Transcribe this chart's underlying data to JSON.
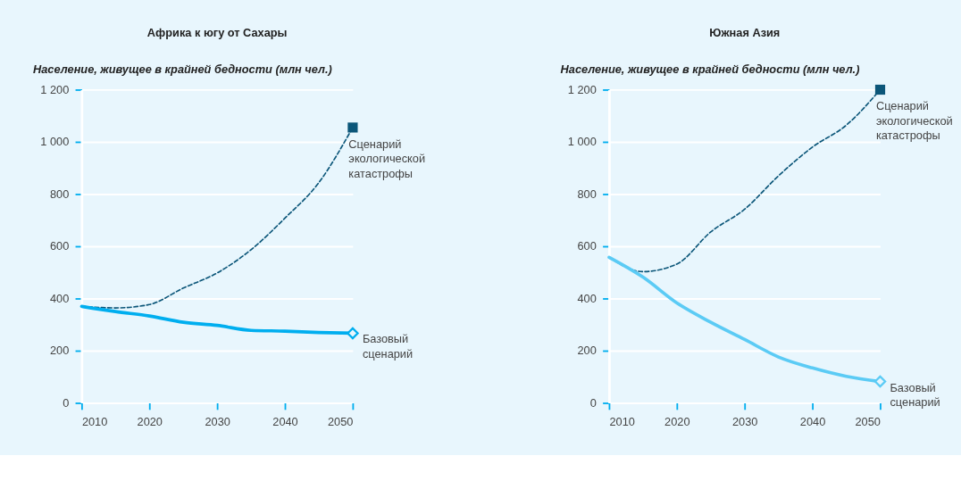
{
  "chart_data": [
    {
      "type": "line",
      "title": "Африка к югу от Сахары",
      "ylabel": "Население, живущее в крайней бедности (млн чел.)",
      "x": [
        2010,
        2015,
        2020,
        2025,
        2030,
        2035,
        2040,
        2045,
        2050
      ],
      "series": [
        {
          "name": "Сценарий\nэкологической\nкатастрофы",
          "color": "#0b5679",
          "line_style": "dashed",
          "values": [
            370,
            364,
            377,
            440,
            498,
            587,
            708,
            844,
            1055
          ]
        },
        {
          "name": "Базовый\nсценарий",
          "color": "#00aeef",
          "line_style": "solid",
          "values": [
            370,
            350,
            333,
            309,
            297,
            278,
            275,
            270,
            267
          ]
        }
      ],
      "xlim": [
        2010,
        2050
      ],
      "xticks": [
        2010,
        2020,
        2030,
        2040,
        2050
      ],
      "ylim": [
        0,
        1200
      ],
      "yticks": [
        0,
        200,
        400,
        600,
        800,
        {
          "value": 1000,
          "label": "1 000"
        },
        {
          "value": 1200,
          "label": "1 200"
        }
      ],
      "grid": "y"
    },
    {
      "type": "line",
      "title": "Южная Азия",
      "ylabel": "Население, живущее в крайней бедности (млн чел.)",
      "x": [
        2010,
        2015,
        2020,
        2025,
        2030,
        2035,
        2040,
        2045,
        2050
      ],
      "series": [
        {
          "name": "Сценарий\nэкологической\nкатастрофы",
          "color": "#0b5679",
          "line_style": "dashed",
          "values": [
            558,
            503,
            532,
            655,
            742,
            870,
            980,
            1064,
            1200
          ]
        },
        {
          "name": "Базовый\nсценарий",
          "color": "#5bcbf5",
          "line_style": "solid",
          "values": [
            558,
            482,
            383,
            309,
            243,
            176,
            134,
            102,
            82
          ]
        }
      ],
      "xlim": [
        2010,
        2050
      ],
      "xticks": [
        2010,
        2020,
        2030,
        2040,
        2050
      ],
      "ylim": [
        0,
        1200
      ],
      "yticks": [
        0,
        200,
        400,
        600,
        800,
        {
          "value": 1000,
          "label": "1 000"
        },
        {
          "value": 1200,
          "label": "1 200"
        }
      ],
      "grid": "y"
    }
  ]
}
